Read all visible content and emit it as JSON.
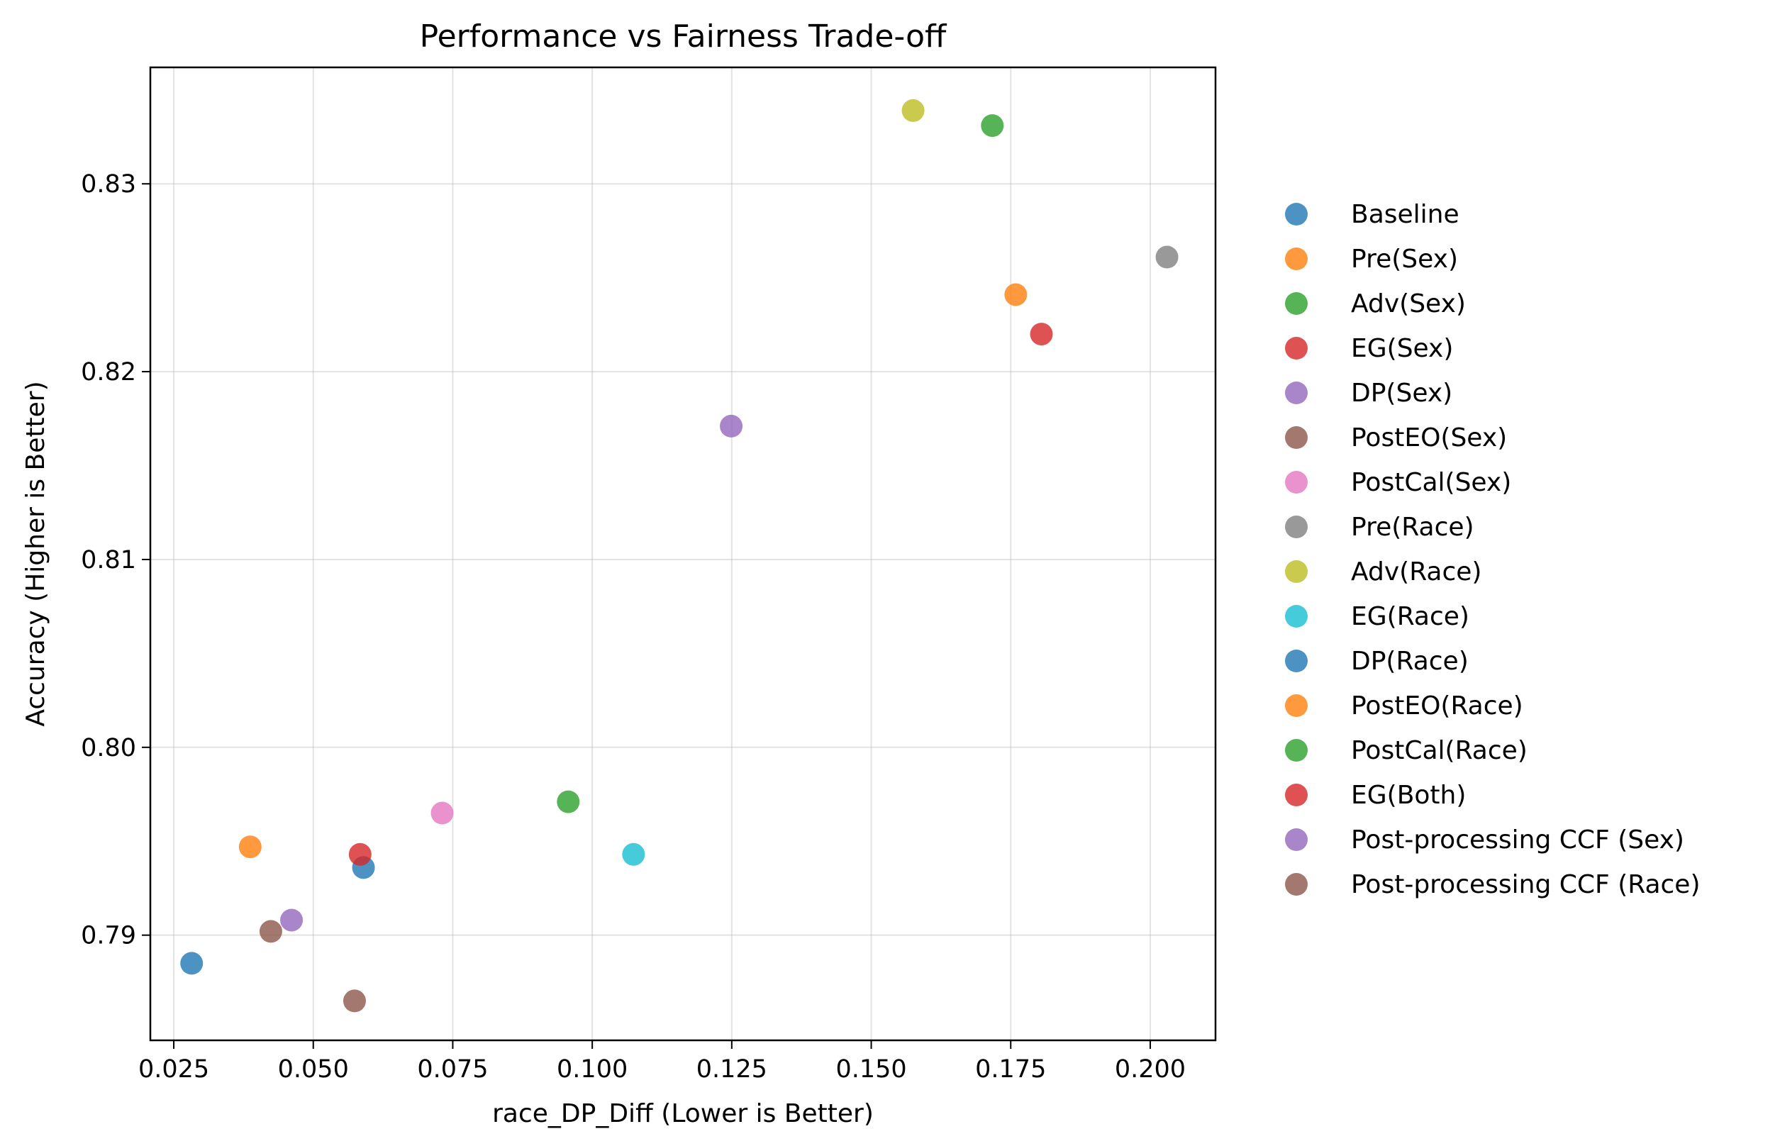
{
  "chart_data": {
    "type": "scatter",
    "title": "Performance vs Fairness Trade-off",
    "xlabel": "race_DP_Diff (Lower is Better)",
    "ylabel": "Accuracy (Higher is Better)",
    "xlim": [
      0.0208,
      0.2117
    ],
    "ylim": [
      0.7844,
      0.8362
    ],
    "xticks": [
      0.025,
      0.05,
      0.075,
      0.1,
      0.125,
      0.15,
      0.175,
      0.2
    ],
    "xtick_labels": [
      "0.025",
      "0.050",
      "0.075",
      "0.100",
      "0.125",
      "0.150",
      "0.175",
      "0.200"
    ],
    "yticks": [
      0.79,
      0.8,
      0.81,
      0.82,
      0.83
    ],
    "ytick_labels": [
      "0.79",
      "0.80",
      "0.81",
      "0.82",
      "0.83"
    ],
    "grid": true,
    "legend_position": "outside-right",
    "series": [
      {
        "name": "Baseline",
        "color": "#1f77b4",
        "x": 0.0282,
        "y": 0.7885
      },
      {
        "name": "Pre(Sex)",
        "color": "#ff7f0e",
        "x": 0.1759,
        "y": 0.8241
      },
      {
        "name": "Adv(Sex)",
        "color": "#2ca02c",
        "x": 0.1717,
        "y": 0.8331
      },
      {
        "name": "EG(Sex)",
        "color": "#d62728",
        "x": 0.1805,
        "y": 0.822
      },
      {
        "name": "DP(Sex)",
        "color": "#9467bd",
        "x": 0.1249,
        "y": 0.8171
      },
      {
        "name": "PostEO(Sex)",
        "color": "#8c564b",
        "x": 0.0424,
        "y": 0.7902
      },
      {
        "name": "PostCal(Sex)",
        "color": "#e377c2",
        "x": 0.0731,
        "y": 0.7965
      },
      {
        "name": "Pre(Race)",
        "color": "#7f7f7f",
        "x": 0.203,
        "y": 0.8261
      },
      {
        "name": "Adv(Race)",
        "color": "#bcbd22",
        "x": 0.1575,
        "y": 0.8339
      },
      {
        "name": "EG(Race)",
        "color": "#17becf",
        "x": 0.1074,
        "y": 0.7943
      },
      {
        "name": "DP(Race)",
        "color": "#1f77b4",
        "x": 0.059,
        "y": 0.7936
      },
      {
        "name": "PostEO(Race)",
        "color": "#ff7f0e",
        "x": 0.0387,
        "y": 0.7947
      },
      {
        "name": "PostCal(Race)",
        "color": "#2ca02c",
        "x": 0.0957,
        "y": 0.7971
      },
      {
        "name": "EG(Both)",
        "color": "#d62728",
        "x": 0.0584,
        "y": 0.7943
      },
      {
        "name": "Post-processing CCF (Sex)",
        "color": "#9467bd",
        "x": 0.0461,
        "y": 0.7908
      },
      {
        "name": "Post-processing CCF (Race)",
        "color": "#8c564b",
        "x": 0.0574,
        "y": 0.7865
      }
    ]
  }
}
